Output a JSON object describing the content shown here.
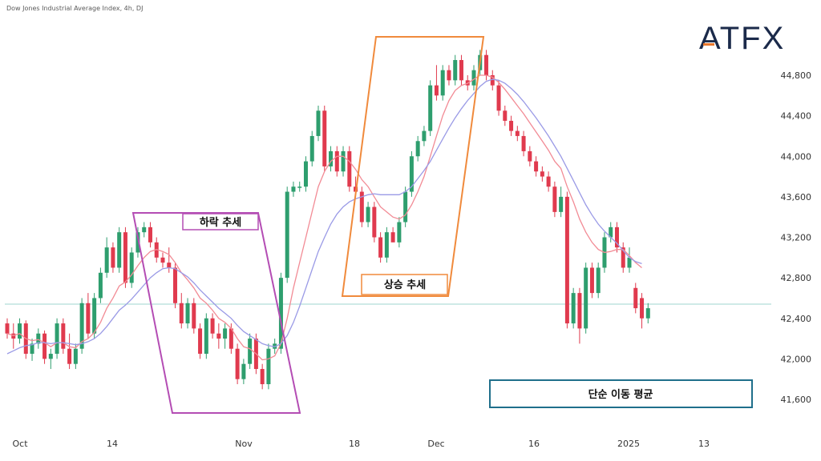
{
  "title": "Dow Jones Industrial Average Index, 4h, DJ",
  "logo": "ATFX",
  "colors": {
    "up": "#2e9e6e",
    "down": "#e03a4e",
    "ma_fast": "#f28b95",
    "ma_slow": "#9a9ae6",
    "downtrend_box": "#b44db4",
    "uptrend_box": "#f08a3c",
    "sma_box": "#1f6f8b",
    "hline": "#9fd6cf"
  },
  "annotations": {
    "downtrend": "하락 추세",
    "uptrend": "상승 추세",
    "sma": "단순 이동 평균"
  },
  "chart_data": {
    "type": "candlestick",
    "title": "Dow Jones Industrial Average Index, 4h, DJ",
    "ylim": [
      41400,
      45200
    ],
    "y_ticks": [
      "44,800",
      "44,400",
      "44,000",
      "43,600",
      "43,200",
      "42,800",
      "42,400",
      "42,000",
      "41,600"
    ],
    "x_ticks": [
      "Oct",
      "14",
      "Nov",
      "18",
      "Dec",
      "16",
      "2025",
      "13"
    ],
    "horizontal_line": 42540,
    "grid": false,
    "series": [
      {
        "name": "",
        "values": [
          [
            42350,
            42400,
            42200,
            42250
          ],
          [
            42250,
            42350,
            42100,
            42200
          ],
          [
            42200,
            42400,
            42150,
            42350
          ],
          [
            42350,
            42380,
            42000,
            42050
          ],
          [
            42050,
            42200,
            41980,
            42150
          ],
          [
            42150,
            42300,
            42100,
            42250
          ],
          [
            42250,
            42280,
            41950,
            42000
          ],
          [
            42000,
            42100,
            41900,
            42050
          ],
          [
            42050,
            42400,
            42000,
            42350
          ],
          [
            42350,
            42400,
            42050,
            42100
          ],
          [
            42100,
            42250,
            41900,
            41950
          ],
          [
            41950,
            42150,
            41900,
            42100
          ],
          [
            42100,
            42600,
            42050,
            42550
          ],
          [
            42550,
            42650,
            42200,
            42250
          ],
          [
            42250,
            42650,
            42200,
            42600
          ],
          [
            42600,
            42900,
            42550,
            42850
          ],
          [
            42850,
            43200,
            42800,
            43100
          ],
          [
            43100,
            43150,
            42850,
            42900
          ],
          [
            42900,
            43300,
            42850,
            43250
          ],
          [
            43250,
            43300,
            42700,
            42750
          ],
          [
            42750,
            43100,
            42700,
            43050
          ],
          [
            43050,
            43300,
            43000,
            43250
          ],
          [
            43250,
            43350,
            43200,
            43300
          ],
          [
            43300,
            43350,
            43100,
            43150
          ],
          [
            43150,
            43200,
            42950,
            43000
          ],
          [
            43000,
            43050,
            42900,
            42950
          ],
          [
            42950,
            43100,
            42850,
            42900
          ],
          [
            42900,
            42950,
            42500,
            42550
          ],
          [
            42550,
            42650,
            42300,
            42350
          ],
          [
            42350,
            42600,
            42300,
            42550
          ],
          [
            42550,
            42600,
            42250,
            42300
          ],
          [
            42300,
            42350,
            42000,
            42050
          ],
          [
            42050,
            42450,
            42000,
            42400
          ],
          [
            42400,
            42450,
            42200,
            42250
          ],
          [
            42250,
            42350,
            42100,
            42200
          ],
          [
            42200,
            42350,
            42100,
            42300
          ],
          [
            42300,
            42350,
            42050,
            42100
          ],
          [
            42100,
            42150,
            41750,
            41800
          ],
          [
            41800,
            42000,
            41750,
            41950
          ],
          [
            41950,
            42250,
            41900,
            42200
          ],
          [
            42200,
            42250,
            41850,
            41900
          ],
          [
            41900,
            41950,
            41700,
            41750
          ],
          [
            41750,
            42150,
            41700,
            42100
          ],
          [
            42100,
            42200,
            42050,
            42150
          ],
          [
            42100,
            42850,
            42050,
            42800
          ],
          [
            42800,
            43700,
            42750,
            43650
          ],
          [
            43650,
            43750,
            43600,
            43700
          ],
          [
            43700,
            43750,
            43650,
            43700
          ],
          [
            43700,
            44000,
            43650,
            43950
          ],
          [
            43950,
            44250,
            43900,
            44200
          ],
          [
            44200,
            44500,
            44150,
            44450
          ],
          [
            44450,
            44500,
            43850,
            43900
          ],
          [
            43900,
            44100,
            43850,
            44050
          ],
          [
            44050,
            44100,
            43800,
            43850
          ],
          [
            43850,
            44100,
            43800,
            44050
          ],
          [
            44050,
            44100,
            43650,
            43700
          ],
          [
            43700,
            43800,
            43600,
            43650
          ],
          [
            43650,
            43700,
            43300,
            43350
          ],
          [
            43350,
            43550,
            43300,
            43500
          ],
          [
            43500,
            43550,
            43150,
            43200
          ],
          [
            43200,
            43250,
            42950,
            43000
          ],
          [
            43000,
            43300,
            42950,
            43250
          ],
          [
            43250,
            43300,
            43200,
            43150
          ],
          [
            43150,
            43400,
            43100,
            43350
          ],
          [
            43350,
            43700,
            43300,
            43650
          ],
          [
            43650,
            44050,
            43600,
            44000
          ],
          [
            44000,
            44200,
            43950,
            44150
          ],
          [
            44150,
            44300,
            44100,
            44250
          ],
          [
            44250,
            44750,
            44200,
            44700
          ],
          [
            44700,
            44900,
            44550,
            44600
          ],
          [
            44600,
            44900,
            44550,
            44850
          ],
          [
            44850,
            44900,
            44700,
            44750
          ],
          [
            44750,
            45000,
            44700,
            44950
          ],
          [
            44950,
            45000,
            44700,
            44750
          ],
          [
            44750,
            44800,
            44650,
            44700
          ],
          [
            44700,
            44900,
            44650,
            44850
          ],
          [
            44850,
            45050,
            44800,
            45000
          ],
          [
            45000,
            45050,
            44750,
            44800
          ],
          [
            44800,
            44850,
            44650,
            44700
          ],
          [
            44700,
            44750,
            44400,
            44450
          ],
          [
            44450,
            44500,
            44300,
            44350
          ],
          [
            44350,
            44400,
            44200,
            44250
          ],
          [
            44250,
            44300,
            44150,
            44200
          ],
          [
            44200,
            44250,
            44000,
            44050
          ],
          [
            44050,
            44100,
            43900,
            43950
          ],
          [
            43950,
            44000,
            43800,
            43850
          ],
          [
            43850,
            43900,
            43750,
            43800
          ],
          [
            43800,
            43850,
            43650,
            43700
          ],
          [
            43700,
            43750,
            43400,
            43450
          ],
          [
            43450,
            43700,
            43400,
            43600
          ],
          [
            43600,
            43650,
            42300,
            42350
          ],
          [
            42350,
            42700,
            42300,
            42650
          ],
          [
            42650,
            42700,
            42150,
            42300
          ],
          [
            42300,
            42950,
            42250,
            42900
          ],
          [
            42900,
            42950,
            42600,
            42650
          ],
          [
            42650,
            42950,
            42600,
            42900
          ],
          [
            42900,
            43250,
            42850,
            43200
          ],
          [
            43200,
            43350,
            43150,
            43300
          ],
          [
            43300,
            43350,
            43050,
            43100
          ],
          [
            43100,
            43150,
            42850,
            42900
          ],
          [
            42900,
            43100,
            42850,
            43000
          ],
          [
            42700,
            42750,
            42450,
            42500
          ],
          [
            42600,
            42650,
            42300,
            42400
          ],
          [
            42400,
            42550,
            42350,
            42500
          ]
        ]
      },
      {
        "name": "",
        "type": "line",
        "values": [
          42250,
          42230,
          42250,
          42200,
          42180,
          42190,
          42160,
          42120,
          42160,
          42160,
          42120,
          42110,
          42170,
          42200,
          42260,
          42360,
          42500,
          42600,
          42720,
          42760,
          42830,
          42920,
          43000,
          43060,
          43080,
          43060,
          43030,
          42950,
          42850,
          42780,
          42700,
          42600,
          42550,
          42480,
          42400,
          42360,
          42300,
          42200,
          42120,
          42100,
          42050,
          41990,
          42000,
          42030,
          42150,
          42400,
          42700,
          42950,
          43200,
          43450,
          43700,
          43850,
          43950,
          44000,
          44000,
          43950,
          43870,
          43770,
          43700,
          43600,
          43500,
          43450,
          43400,
          43380,
          43420,
          43520,
          43650,
          43800,
          44000,
          44200,
          44400,
          44550,
          44650,
          44700,
          44720,
          44760,
          44800,
          44800,
          44780,
          44730,
          44660,
          44580,
          44500,
          44420,
          44330,
          44240,
          44150,
          44060,
          43950,
          43880,
          43700,
          43550,
          43380,
          43250,
          43150,
          43080,
          43050,
          43060,
          43080,
          43080,
          43020,
          42950,
          42900
        ]
      },
      {
        "name": "",
        "type": "line",
        "values": [
          42050,
          42080,
          42110,
          42130,
          42140,
          42160,
          42160,
          42150,
          42160,
          42160,
          42150,
          42140,
          42150,
          42170,
          42200,
          42250,
          42320,
          42400,
          42480,
          42530,
          42590,
          42660,
          42730,
          42800,
          42850,
          42890,
          42900,
          42890,
          42850,
          42810,
          42750,
          42680,
          42620,
          42560,
          42500,
          42450,
          42400,
          42330,
          42270,
          42230,
          42190,
          42150,
          42130,
          42120,
          42150,
          42230,
          42360,
          42520,
          42700,
          42880,
          43060,
          43200,
          43330,
          43430,
          43500,
          43550,
          43580,
          43600,
          43620,
          43630,
          43620,
          43620,
          43620,
          43620,
          43650,
          43700,
          43780,
          43860,
          43950,
          44060,
          44170,
          44280,
          44380,
          44470,
          44550,
          44620,
          44690,
          44740,
          44760,
          44750,
          44720,
          44670,
          44610,
          44540,
          44460,
          44380,
          44290,
          44200,
          44100,
          44000,
          43880,
          43760,
          43640,
          43520,
          43420,
          43330,
          43260,
          43200,
          43140,
          43070,
          43000,
          42960,
          42940
        ]
      }
    ]
  }
}
